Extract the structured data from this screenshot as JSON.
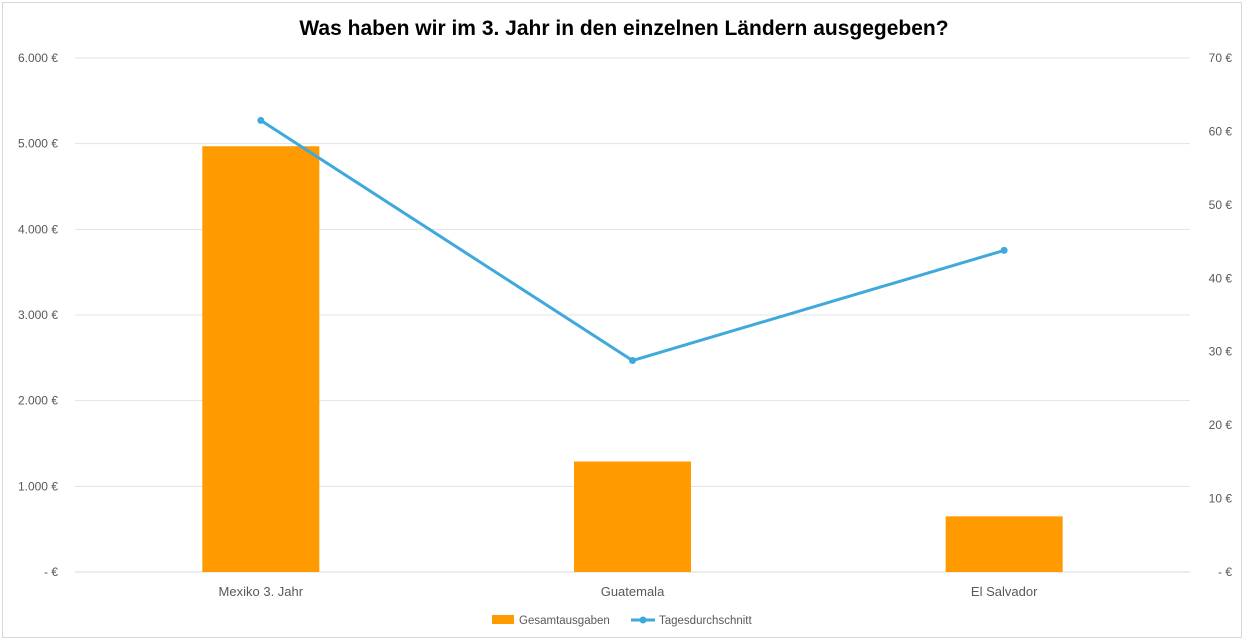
{
  "chart_data": {
    "type": "bar",
    "title": "Was haben wir im 3. Jahr in den einzelnen Ländern ausgegeben?",
    "categories": [
      "Mexiko 3. Jahr",
      "Guatemala",
      "El Salvador"
    ],
    "series": [
      {
        "name": "Gesamtausgaben",
        "type": "bar",
        "axis": "left",
        "color": "#ff9a00",
        "values": [
          4970,
          1290,
          650
        ]
      },
      {
        "name": "Tagesdurchschnitt",
        "type": "line",
        "axis": "right",
        "color": "#3fa9dc",
        "values": [
          61.5,
          28.8,
          43.8
        ]
      }
    ],
    "ylim": [
      0,
      6000
    ],
    "y2lim": [
      0,
      70
    ],
    "y_ticks": [
      "- €",
      "1.000 €",
      "2.000 €",
      "3.000 €",
      "4.000 €",
      "5.000 €",
      "6.000 €"
    ],
    "y2_ticks": [
      "- €",
      "10 €",
      "20 €",
      "30 €",
      "40 €",
      "50 €",
      "60 €",
      "70 €"
    ],
    "grid": true,
    "legend_position": "bottom"
  }
}
